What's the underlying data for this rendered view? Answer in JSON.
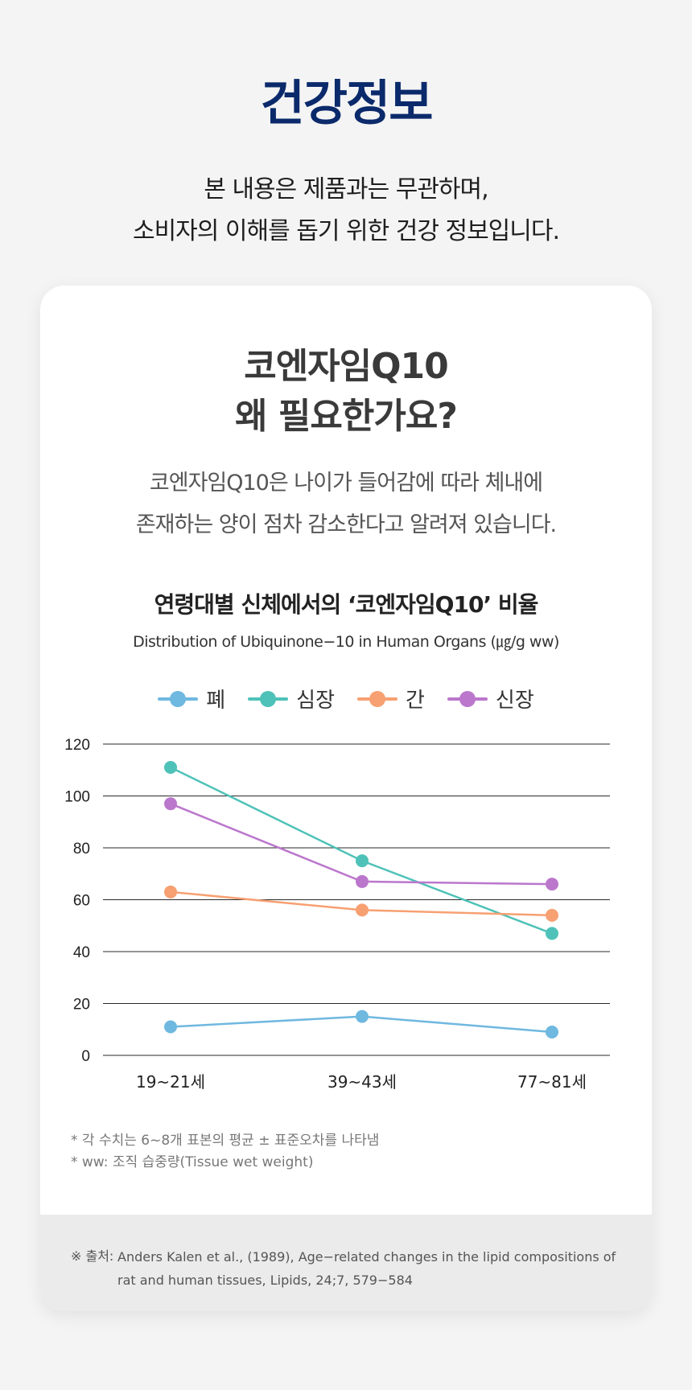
{
  "header": {
    "title": "건강정보",
    "subtitle_line1": "본 내용은 제품과는 무관하며,",
    "subtitle_line2": "소비자의 이해를 돕기 위한 건강 정보입니다."
  },
  "card": {
    "title_line1": "코엔자임Q10",
    "title_line2": "왜 필요한가요?",
    "desc_line1": "코엔자임Q10은 나이가 들어감에 따라 체내에",
    "desc_line2": "존재하는 양이 점차 감소한다고 알려져 있습니다."
  },
  "chart_data": {
    "type": "line",
    "title": "연령대별 신체에서의 ‘코엔자임Q10’ 비율",
    "subtitle": "Distribution of Ubiquinone−10 in Human Organs (㎍/g ww)",
    "categories": [
      "19~21세",
      "39~43세",
      "77~81세"
    ],
    "ylim": [
      0,
      120
    ],
    "yticks": [
      0,
      20,
      40,
      60,
      80,
      100,
      120
    ],
    "grid": true,
    "legend_position": "top-center",
    "xlabel": "",
    "ylabel": "",
    "series": [
      {
        "name": "폐",
        "color": "#6fb8e0",
        "values": [
          11,
          15,
          9
        ]
      },
      {
        "name": "심장",
        "color": "#4ec2b8",
        "values": [
          111,
          75,
          47
        ]
      },
      {
        "name": "간",
        "color": "#f7a072",
        "values": [
          63,
          56,
          54
        ]
      },
      {
        "name": "신장",
        "color": "#bb77cc",
        "values": [
          97,
          67,
          66
        ]
      }
    ]
  },
  "notes": {
    "line1": "* 각 수치는 6~8개 표본의 평균 ± 표준오차를 나타냄",
    "line2": "* ww: 조직 습중량(Tissue wet weight)"
  },
  "source": {
    "label": "※ 출처:",
    "text": "Anders Kalen et al., (1989), Age−related changes in the lipid compositions of rat and human tissues, Lipids, 24;7, 579−584"
  }
}
